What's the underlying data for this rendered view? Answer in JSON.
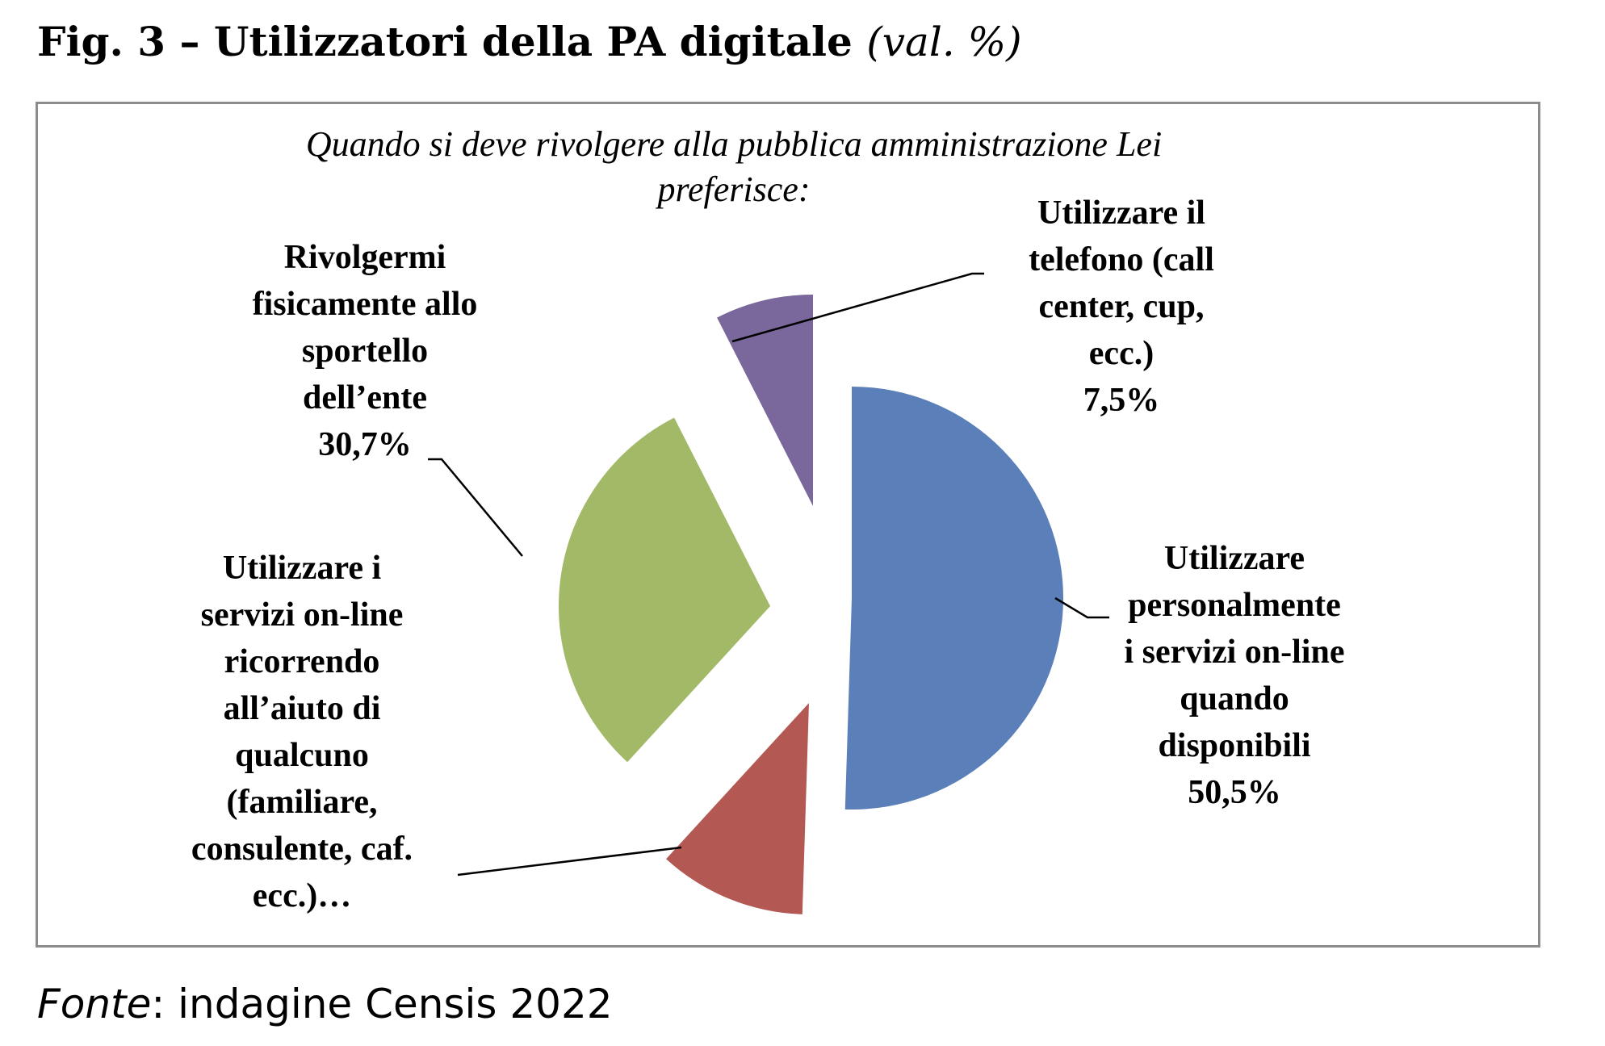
{
  "figure": {
    "title": "Fig. 3 – Utilizzatori della PA digitale",
    "unit": "(val. %)",
    "source_label": "Fonte",
    "source_text": ": indagine Censis 2022"
  },
  "chart_data": {
    "type": "pie",
    "exploded": true,
    "subtitle_lines": [
      "Quando si deve rivolgere alla pubblica amministrazione Lei",
      "preferisce:"
    ],
    "slices": [
      {
        "name": "Utilizzare personalmente i servizi on-line quando disponibili",
        "value": 50.5,
        "value_label": "50,5%",
        "color": "#5b7fb8",
        "label_lines": [
          "Utilizzare",
          "personalmente",
          "i servizi on-line",
          "quando",
          "disponibili",
          "50,5%"
        ]
      },
      {
        "name": "Utilizzare i servizi on-line ricorrendo all’aiuto di qualcuno (familiare, consulente, caf. ecc.)…",
        "value": 11.3,
        "value_label": "",
        "color": "#b35852",
        "label_lines": [
          "Utilizzare i",
          "servizi on-line",
          "ricorrendo",
          "all’aiuto di",
          "qualcuno",
          "(familiare,",
          "consulente, caf.",
          "ecc.)…"
        ]
      },
      {
        "name": "Rivolgermi fisicamente allo sportello dell’ente",
        "value": 30.7,
        "value_label": "30,7%",
        "color": "#a2b968",
        "label_lines": [
          "Rivolgermi",
          "fisicamente allo",
          "sportello",
          "dell’ente",
          "30,7%"
        ]
      },
      {
        "name": "Utilizzare il telefono (call center, cup, ecc.)",
        "value": 7.5,
        "value_label": "7,5%",
        "color": "#7a679b",
        "label_lines": [
          "Utilizzare il",
          "telefono (call",
          "center, cup,",
          "ecc.)",
          "7,5%"
        ]
      }
    ]
  }
}
